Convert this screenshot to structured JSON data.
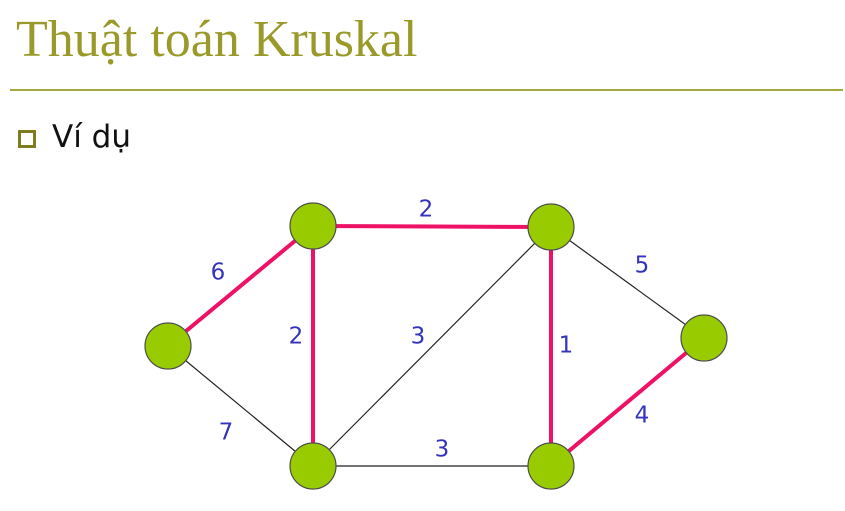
{
  "slide": {
    "title": "Thuật toán Kruskal",
    "bullet": "Ví dụ"
  },
  "colors": {
    "title": "#9a9a2a",
    "node_fill": "#99cc00",
    "node_stroke": "#4d4d4d",
    "tree_edge": "#ee1166",
    "normal_edge": "#222222",
    "weight_label": "#3333bb"
  },
  "graph": {
    "nodes": [
      {
        "id": "a"
      },
      {
        "id": "b"
      },
      {
        "id": "c"
      },
      {
        "id": "d"
      },
      {
        "id": "e"
      },
      {
        "id": "f"
      }
    ],
    "edges": [
      {
        "from": "a",
        "to": "b",
        "weight": "6",
        "in_tree": true
      },
      {
        "from": "b",
        "to": "c",
        "weight": "2",
        "in_tree": true
      },
      {
        "from": "b",
        "to": "e",
        "weight": "2",
        "in_tree": true
      },
      {
        "from": "c",
        "to": "e",
        "weight": "3",
        "in_tree": false
      },
      {
        "from": "c",
        "to": "d",
        "weight": "5",
        "in_tree": false
      },
      {
        "from": "c",
        "to": "f",
        "weight": "1",
        "in_tree": true
      },
      {
        "from": "a",
        "to": "e",
        "weight": "7",
        "in_tree": false
      },
      {
        "from": "e",
        "to": "f",
        "weight": "3",
        "in_tree": false
      },
      {
        "from": "f",
        "to": "d",
        "weight": "4",
        "in_tree": true
      }
    ]
  }
}
